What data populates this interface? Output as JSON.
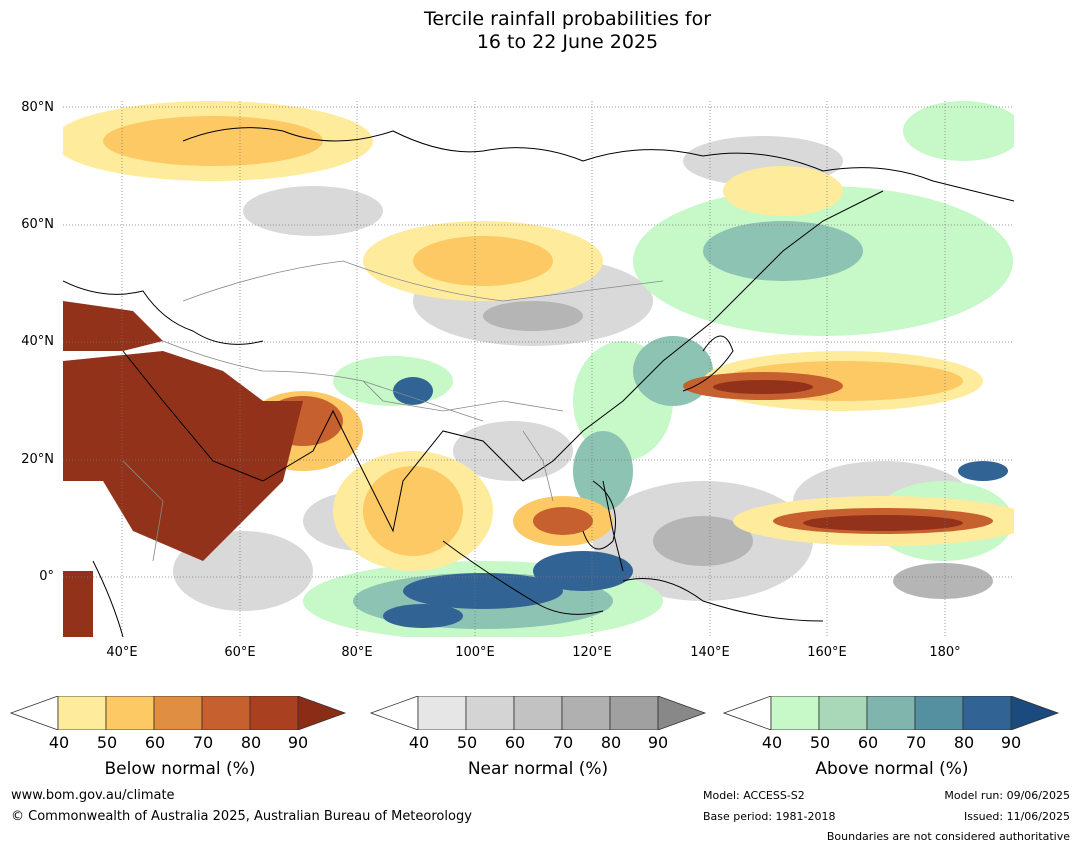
{
  "title": {
    "line1": "Tercile rainfall probabilities for",
    "line2": "16 to 22 June 2025"
  },
  "axes": {
    "lat_labels": [
      "80°N",
      "60°N",
      "40°N",
      "20°N",
      "0°"
    ],
    "lon_labels": [
      "40°E",
      "60°E",
      "80°E",
      "100°E",
      "120°E",
      "140°E",
      "160°E",
      "180°"
    ]
  },
  "legend": {
    "ticks": [
      "40",
      "50",
      "60",
      "70",
      "80",
      "90"
    ],
    "below": {
      "label": "Below normal (%)",
      "colors": [
        "#ffffff",
        "#feeb9c",
        "#fdc964",
        "#e08e42",
        "#c6602e",
        "#a9401f",
        "#8b2c16"
      ]
    },
    "near": {
      "label": "Near normal (%)",
      "colors": [
        "#ffffff",
        "#e6e6e6",
        "#d4d4d4",
        "#c2c2c2",
        "#b0b0b0",
        "#a0a0a0",
        "#888888"
      ]
    },
    "above": {
      "label": "Above normal (%)",
      "colors": [
        "#ffffff",
        "#c6f8c8",
        "#a8d8b8",
        "#7fb5ad",
        "#5590a0",
        "#326395",
        "#1a4a7e"
      ]
    }
  },
  "footer": {
    "url": "www.bom.gov.au/climate",
    "copyright": "© Commonwealth of Australia 2025, Australian Bureau of Meteorology",
    "model": "Model: ACCESS-S2",
    "base_period": "Base period: 1981-2018",
    "model_run": "Model run: 09/06/2025",
    "issued": "Issued: 11/06/2025",
    "disclaimer": "Boundaries are not considered authoritative"
  }
}
